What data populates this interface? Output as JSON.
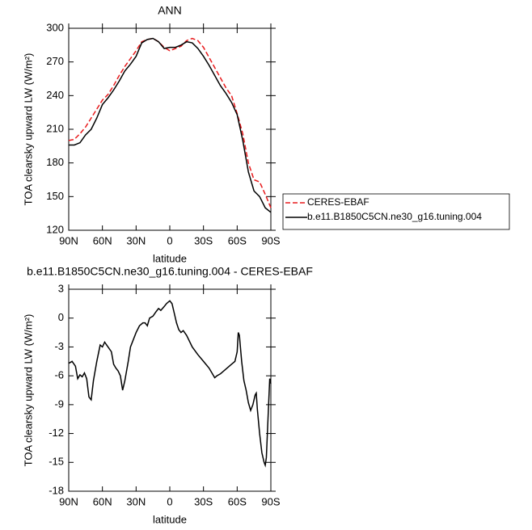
{
  "chart_data": [
    {
      "type": "line",
      "title": "ANN",
      "xlabel": "latitude",
      "ylabel": "TOA clearsky upward LW (W/m²)",
      "x": [
        90,
        85,
        80,
        75,
        70,
        65,
        60,
        55,
        50,
        45,
        40,
        35,
        30,
        25,
        20,
        15,
        10,
        5,
        0,
        -5,
        -10,
        -15,
        -20,
        -25,
        -30,
        -35,
        -40,
        -45,
        -50,
        -55,
        -60,
        -65,
        -70,
        -75,
        -80,
        -85,
        -90
      ],
      "series": [
        {
          "name": "CERES-EBAF",
          "color": "#e8191b",
          "linestyle": "dashed",
          "values": [
            200,
            201,
            206,
            212,
            220,
            228,
            236,
            241,
            249,
            258,
            266,
            273,
            280,
            288,
            290,
            291,
            288,
            283,
            280,
            282,
            284,
            289,
            291,
            289,
            283,
            274,
            265,
            256,
            247,
            240,
            224,
            206,
            180,
            165,
            163,
            152,
            140
          ]
        },
        {
          "name": "b.e11.B1850C5CN.ne30_g16.tuning.004",
          "color": "#000000",
          "linestyle": "solid",
          "values": [
            196,
            196,
            198,
            205,
            210,
            220,
            232,
            238,
            245,
            253,
            262,
            268,
            275,
            287,
            290,
            291,
            288,
            282,
            283,
            283,
            285,
            288,
            287,
            282,
            275,
            267,
            258,
            249,
            242,
            234,
            223,
            200,
            172,
            155,
            150,
            140,
            136
          ]
        }
      ],
      "xlim": [
        90,
        -90
      ],
      "xticks": [
        {
          "value": 90,
          "label": "90N"
        },
        {
          "value": 60,
          "label": "60N"
        },
        {
          "value": 30,
          "label": "30N"
        },
        0,
        {
          "value": -30,
          "label": "30S"
        },
        {
          "value": -60,
          "label": "60S"
        },
        {
          "value": -90,
          "label": "90S"
        }
      ],
      "ylim": [
        120,
        300
      ],
      "yticks": [
        120,
        150,
        180,
        210,
        240,
        270,
        300
      ],
      "legend": "outside-right"
    },
    {
      "type": "line",
      "title": "b.e11.B1850C5CN.ne30_g16.tuning.004 - CERES-EBAF",
      "xlabel": "latitude",
      "ylabel": "TOA clearsky upward LW (W/m²)",
      "x": [
        90,
        87,
        84,
        82,
        80,
        78,
        76,
        74,
        72,
        70,
        68,
        65,
        62,
        60,
        58,
        55,
        52,
        50,
        48,
        46,
        44,
        42,
        40,
        37,
        35,
        30,
        27,
        24,
        22,
        20,
        18,
        15,
        12,
        10,
        8,
        5,
        3,
        0,
        -2,
        -4,
        -6,
        -8,
        -10,
        -12,
        -15,
        -20,
        -25,
        -30,
        -35,
        -40,
        -42,
        -45,
        -50,
        -55,
        -58,
        -60,
        -61,
        -62,
        -64,
        -66,
        -68,
        -70,
        -72,
        -74,
        -76,
        -77,
        -78,
        -80,
        -82,
        -84,
        -85,
        -86,
        -88,
        -89,
        -90
      ],
      "values": [
        -4.7,
        -4.5,
        -5.0,
        -6.3,
        -5.9,
        -6.1,
        -5.7,
        -6.3,
        -8.2,
        -8.5,
        -6.5,
        -4.5,
        -2.8,
        -3.0,
        -2.5,
        -3.0,
        -3.5,
        -4.8,
        -5.2,
        -5.5,
        -6.0,
        -7.5,
        -6.5,
        -4.5,
        -3.0,
        -1.5,
        -0.8,
        -0.5,
        -0.5,
        -0.8,
        0,
        0.2,
        0.7,
        1.0,
        0.8,
        1.2,
        1.5,
        1.8,
        1.5,
        0.5,
        -0.5,
        -1.2,
        -1.5,
        -1.3,
        -1.8,
        -3.0,
        -3.8,
        -4.5,
        -5.2,
        -6.2,
        -6.0,
        -5.8,
        -5.3,
        -4.8,
        -4.5,
        -3.5,
        -1.5,
        -1.8,
        -4.5,
        -6.5,
        -7.5,
        -8.8,
        -9.6,
        -9.0,
        -8.0,
        -7.8,
        -9.5,
        -12.0,
        -14.0,
        -15.0,
        -15.3,
        -14.5,
        -9.0,
        -6.3,
        -6.8
      ],
      "color": "#000000",
      "linestyle": "solid",
      "xlim": [
        90,
        -90
      ],
      "xticks": [
        {
          "value": 90,
          "label": "90N"
        },
        {
          "value": 60,
          "label": "60N"
        },
        {
          "value": 30,
          "label": "30N"
        },
        0,
        {
          "value": -30,
          "label": "30S"
        },
        {
          "value": -60,
          "label": "60S"
        },
        {
          "value": -90,
          "label": "90S"
        }
      ],
      "ylim": [
        -18,
        3
      ],
      "yticks": [
        -18,
        -15,
        -12,
        -9,
        -6,
        -3,
        0,
        3
      ]
    }
  ]
}
